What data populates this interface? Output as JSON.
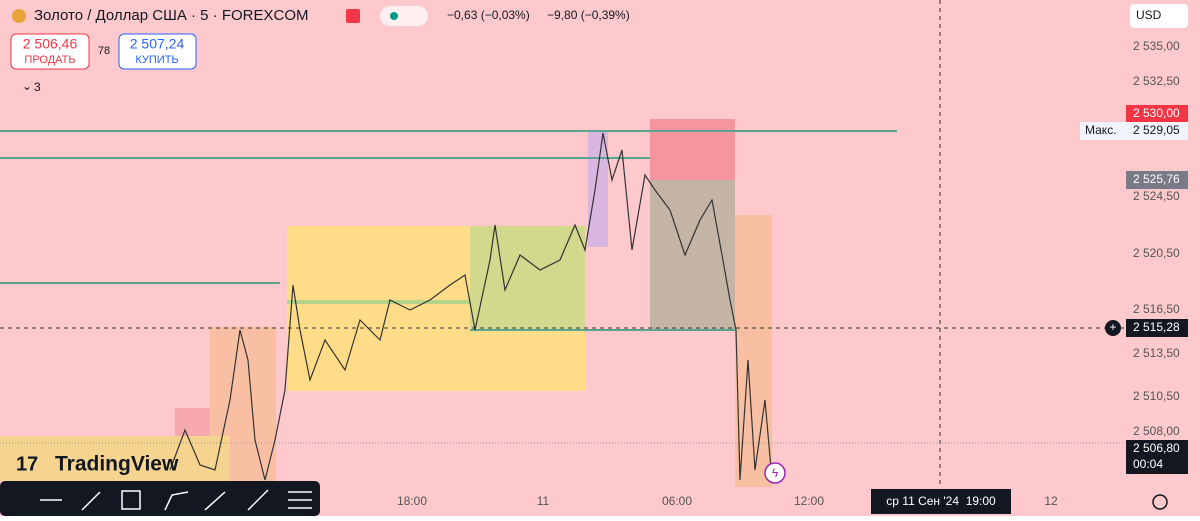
{
  "header": {
    "title": "Золото / Доллар США · 5 · FOREXCOM",
    "change_1": "−0,63 (−0,03%)",
    "change_2": "−9,80 (−0,39%)",
    "sell_price": "2 506,46",
    "sell_label": "ПРОДАТЬ",
    "spread": "78",
    "buy_price": "2 507,24",
    "buy_label": "КУПИТЬ",
    "indicators_count": "3"
  },
  "currency": "USD",
  "price_axis": [
    "2 535,00",
    "2 532,50",
    "2 524,50",
    "2 520,50",
    "2 516,50",
    "2 513,50",
    "2 510,50",
    "2 508,00"
  ],
  "price_labels": {
    "high_alert": "2 530,00",
    "max_label": "Макс.",
    "max_value": "2 529,05",
    "level": "2 525,76",
    "crosshair": "2 515,28",
    "last": "2 506,80",
    "countdown": "00:04"
  },
  "time_axis": [
    "18:00",
    "11",
    "06:00",
    "12:00",
    "12"
  ],
  "crosshair_time": "ср 11 Сен '24  19:00",
  "logo": "TradingView"
}
